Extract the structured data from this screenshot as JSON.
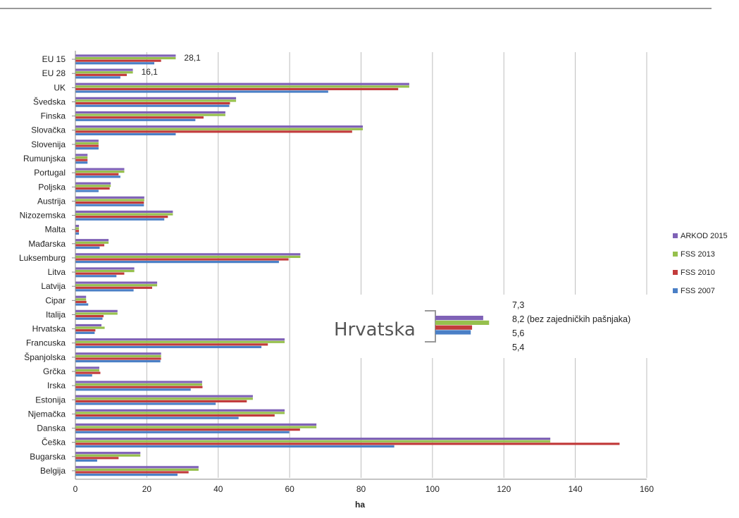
{
  "chart_data": {
    "type": "bar",
    "orientation": "horizontal",
    "xlabel": "ha",
    "xlim": [
      0,
      160
    ],
    "xticks": [
      0,
      20,
      40,
      60,
      80,
      100,
      120,
      140,
      160
    ],
    "grid": "vertical",
    "legend_position": "right",
    "categories": [
      "EU 15",
      "EU 28",
      "UK",
      "Švedska",
      "Finska",
      "Slovačka",
      "Slovenija",
      "Rumunjska",
      "Portugal",
      "Poljska",
      "Austrija",
      "Nizozemska",
      "Malta",
      "Mađarska",
      "Luksemburg",
      "Litva",
      "Latvija",
      "Cipar",
      "Italija",
      "Hrvatska",
      "Francuska",
      "Španjolska",
      "Grčka",
      "Irska",
      "Estonija",
      "Njemačka",
      "Danska",
      "Češka",
      "Bugarska",
      "Belgija"
    ],
    "series": [
      {
        "name": "ARKOD 2015",
        "color": "#7f62b6",
        "values": [
          28.1,
          16.1,
          93.5,
          45,
          42,
          80.5,
          6.5,
          3.4,
          13.7,
          9.9,
          19.3,
          27.3,
          1,
          9.3,
          63,
          16.5,
          22.9,
          3,
          11.8,
          7.3,
          58.6,
          24,
          6.7,
          35.5,
          49.7,
          58.6,
          67.5,
          133,
          18.2,
          34.5
        ]
      },
      {
        "name": "FSS 2013",
        "color": "#96c04d",
        "values": [
          28.1,
          16.1,
          93.5,
          45,
          42,
          80.5,
          6.5,
          3.4,
          13.7,
          9.9,
          19.3,
          27.3,
          1,
          9.3,
          63,
          16.5,
          22.9,
          3,
          11.8,
          8.2,
          58.6,
          24,
          6.7,
          35.5,
          49.7,
          58.6,
          67.5,
          133,
          18.2,
          34.5
        ]
      },
      {
        "name": "FSS 2010",
        "color": "#c23b3b",
        "values": [
          24,
          14.4,
          90.4,
          43.3,
          35.9,
          77.5,
          6.5,
          3.4,
          12.1,
          9.6,
          19.2,
          25.9,
          1,
          8.1,
          59.7,
          13.7,
          21.5,
          3.1,
          7.9,
          5.6,
          53.9,
          24,
          7,
          35.6,
          48,
          55.8,
          62.9,
          152.4,
          12.1,
          31.7
        ]
      },
      {
        "name": "FSS 2007",
        "color": "#4a7fc6",
        "values": [
          22.1,
          12.6,
          70.8,
          43.1,
          33.6,
          28.1,
          6.5,
          3.4,
          12.6,
          6.5,
          19.2,
          24.9,
          1,
          6.8,
          57,
          11.5,
          16.3,
          3.6,
          7.6,
          5.4,
          52.1,
          23.8,
          4.7,
          32.3,
          39.3,
          45.7,
          59.9,
          89.3,
          6.1,
          28.6
        ]
      }
    ],
    "annotations": {
      "EU 15": "28,1",
      "EU 28": "16,1"
    },
    "inset": {
      "title": "Hrvatska",
      "labels": [
        "7,3",
        "8,2 (bez zajedničkih pašnjaka)",
        "5,6",
        "5,4"
      ]
    }
  }
}
